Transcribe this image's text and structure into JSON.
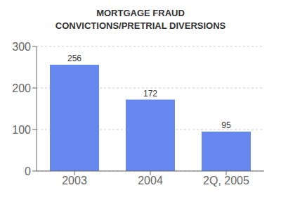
{
  "chart_data": {
    "type": "bar",
    "title": "MORTGAGE FRAUD",
    "subtitle": "CONVICTIONS/PRETRIAL DIVERSIONS",
    "categories": [
      "2003",
      "2004",
      "2Q, 2005"
    ],
    "values": [
      256,
      172,
      95
    ],
    "color": "#6688ee",
    "ylim": [
      0,
      300
    ],
    "yticks": [
      0,
      100,
      200,
      300
    ],
    "grid": true,
    "data_labels": true
  }
}
